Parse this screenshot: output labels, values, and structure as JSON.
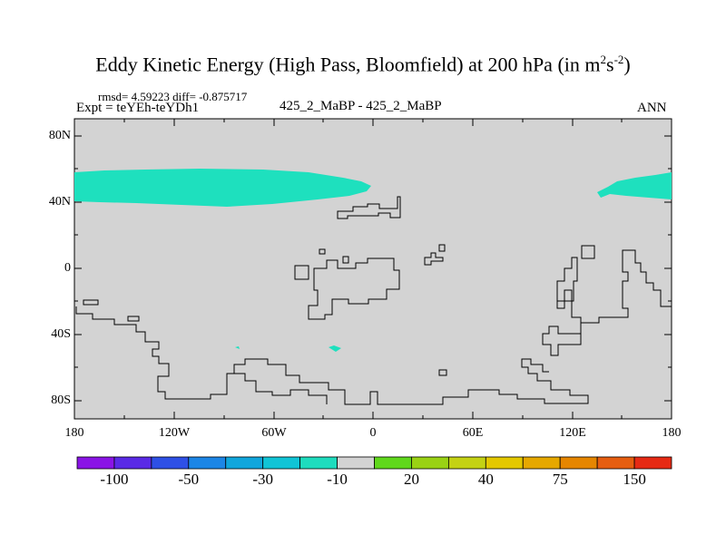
{
  "title": {
    "main": "Eddy Kinetic Energy (High Pass, Bloomfield) at 200 hPa (in m",
    "unit_sup1": "2",
    "unit_s": "s",
    "unit_sup2": "-2",
    "close": ")"
  },
  "stats": "rmsd= 4.59223  diff= -0.875717",
  "expt": "Expt = teYEh-teYDh1",
  "case": "425_2_MaBP - 425_2_MaBP",
  "season": "ANN",
  "axes": {
    "y_ticks": [
      "80N",
      "40N",
      "0",
      "40S",
      "80S"
    ],
    "x_ticks": [
      "180",
      "120W",
      "60W",
      "0",
      "60E",
      "120E",
      "180"
    ]
  },
  "colors": {
    "background_field": "#d3d3d3",
    "negative_anomaly": "#1ee0be",
    "outline": "#000000"
  },
  "colorbar": {
    "colors": [
      "#8a14e6",
      "#5a2ae6",
      "#2e50e6",
      "#1c86e6",
      "#10a6dc",
      "#10c4d6",
      "#1edcbe",
      "#d3d3d3",
      "#60d81c",
      "#9ad214",
      "#c4d214",
      "#e4c800",
      "#e6a800",
      "#e68600",
      "#e65e10",
      "#e62a14"
    ],
    "labels": [
      "-100",
      "-50",
      "-30",
      "-10",
      "20",
      "40",
      "75",
      "150"
    ]
  }
}
